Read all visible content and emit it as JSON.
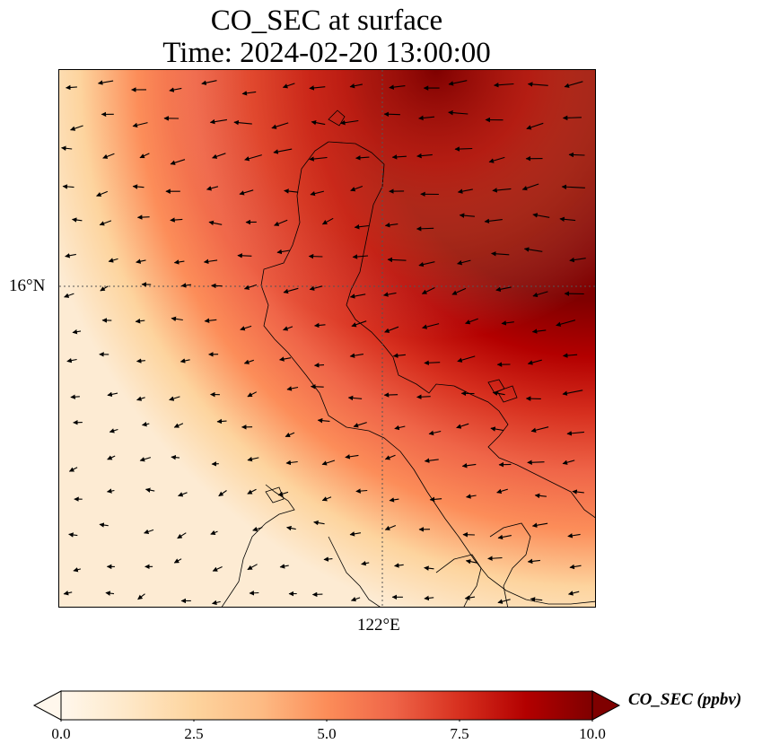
{
  "title": {
    "line1": "CO_SEC at surface",
    "line2": "Time: 2024-02-20 13:00:00"
  },
  "axes": {
    "lat_gridline_label": "16°N",
    "lon_gridline_label": "122°E"
  },
  "colorbar": {
    "label": "CO_SEC (ppbv)",
    "min": 0.0,
    "max": 10.0,
    "extend": "both",
    "ticks": [
      "0.0",
      "2.5",
      "5.0",
      "7.5",
      "10.0"
    ],
    "colormap": "OrRd",
    "colors": [
      "#fff7ec",
      "#fee8c8",
      "#fdd49e",
      "#fdbb84",
      "#fc8d59",
      "#ef6548",
      "#d7301f",
      "#b30000",
      "#7f0000"
    ]
  },
  "map": {
    "field": "CO_SEC",
    "level": "surface",
    "plume_description_region": "high concentration (>=10 ppbv) in north-east, decreasing to ~0 in west and south-west",
    "wind_vectors": true,
    "coastlines": true,
    "gridlines": "dotted"
  }
}
